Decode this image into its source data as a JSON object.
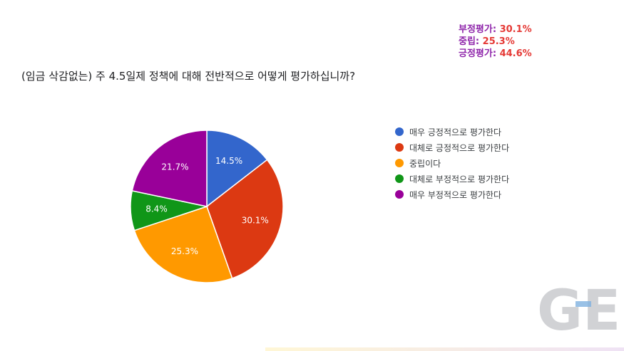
{
  "chart_data": {
    "type": "pie",
    "title": "(임금 삭감없는) 주 4.5일제 정책에 대해 전반적으로 어떻게 평가하십니까?",
    "slices": [
      {
        "label": "매우 긍정적으로 평가한다",
        "value": 14.5,
        "value_label": "14.5%",
        "color": "#3366cc"
      },
      {
        "label": "대체로 긍정적으로 평가한다",
        "value": 30.1,
        "value_label": "30.1%",
        "color": "#dc3912"
      },
      {
        "label": "중립이다",
        "value": 25.3,
        "value_label": "25.3%",
        "color": "#ff9900"
      },
      {
        "label": "대체로 부정적으로 평가한다",
        "value": 8.4,
        "value_label": "8.4%",
        "color": "#109618"
      },
      {
        "label": "매우 부정적으로 평가한다",
        "value": 21.7,
        "value_label": "21.7%",
        "color": "#990099"
      }
    ],
    "legend_position": "right"
  },
  "summary": [
    {
      "label": "부정평가: ",
      "value": "30.1%"
    },
    {
      "label": "중립: ",
      "value": "25.3%"
    },
    {
      "label": "긍정평가: ",
      "value": "44.6%"
    }
  ],
  "watermark": {
    "text": "GEN"
  }
}
